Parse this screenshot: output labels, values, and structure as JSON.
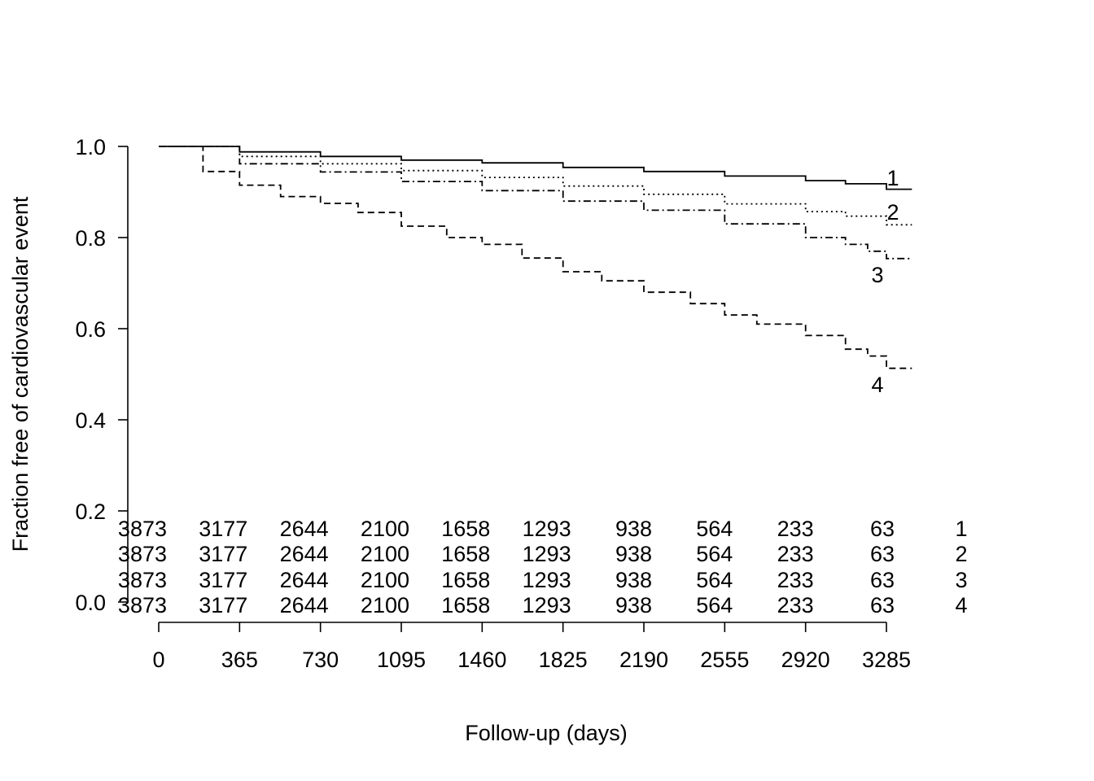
{
  "chart_data": {
    "type": "line",
    "subtype": "kaplan-meier step curves",
    "title": "",
    "xlabel": "Follow-up (days)",
    "ylabel": "Fraction free of cardiovascular event",
    "xlim": [
      0,
      3400
    ],
    "ylim": [
      0.0,
      1.0
    ],
    "x_ticks": [
      0,
      365,
      730,
      1095,
      1460,
      1825,
      2190,
      2555,
      2920,
      3285
    ],
    "y_ticks": [
      "1.0",
      "0.8",
      "0.6",
      "0.4",
      "0.2",
      "0.0"
    ],
    "grid": false,
    "legend": "none; curves labelled directly at right end",
    "series": [
      {
        "name": "1",
        "line_style": "solid",
        "x": [
          0,
          365,
          730,
          1095,
          1460,
          1825,
          2190,
          2555,
          2920,
          3100,
          3285,
          3400
        ],
        "y": [
          1.0,
          0.988,
          0.978,
          0.97,
          0.964,
          0.954,
          0.945,
          0.935,
          0.925,
          0.918,
          0.906,
          0.906
        ]
      },
      {
        "name": "2",
        "line_style": "dotted",
        "x": [
          0,
          365,
          730,
          1095,
          1460,
          1825,
          2190,
          2555,
          2920,
          3100,
          3285,
          3400
        ],
        "y": [
          1.0,
          0.978,
          0.962,
          0.947,
          0.932,
          0.913,
          0.895,
          0.874,
          0.857,
          0.847,
          0.828,
          0.828
        ]
      },
      {
        "name": "3",
        "line_style": "dash-dot",
        "x": [
          0,
          365,
          730,
          1095,
          1460,
          1825,
          2190,
          2555,
          2920,
          3100,
          3200,
          3285,
          3400
        ],
        "y": [
          1.0,
          0.962,
          0.944,
          0.923,
          0.903,
          0.88,
          0.86,
          0.83,
          0.8,
          0.785,
          0.77,
          0.754,
          0.754
        ]
      },
      {
        "name": "4",
        "line_style": "dashed",
        "x": [
          0,
          200,
          365,
          550,
          730,
          900,
          1095,
          1300,
          1460,
          1640,
          1825,
          2000,
          2190,
          2400,
          2555,
          2700,
          2920,
          3100,
          3200,
          3285,
          3400
        ],
        "y": [
          1.0,
          0.945,
          0.915,
          0.89,
          0.875,
          0.855,
          0.825,
          0.8,
          0.785,
          0.755,
          0.725,
          0.705,
          0.68,
          0.655,
          0.63,
          0.61,
          0.585,
          0.555,
          0.54,
          0.513,
          0.513
        ]
      }
    ],
    "curve_labels": [
      "1",
      "2",
      "3",
      "4"
    ],
    "risk_table": {
      "rows": [
        {
          "label": "1",
          "values": [
            "3873",
            "3177",
            "2644",
            "2100",
            "1658",
            "1293",
            "938",
            "564",
            "233",
            "63"
          ]
        },
        {
          "label": "2",
          "values": [
            "3873",
            "3177",
            "2644",
            "2100",
            "1658",
            "1293",
            "938",
            "564",
            "233",
            "63"
          ]
        },
        {
          "label": "3",
          "values": [
            "3873",
            "3177",
            "2644",
            "2100",
            "1658",
            "1293",
            "938",
            "564",
            "233",
            "63"
          ]
        },
        {
          "label": "4",
          "values": [
            "3873",
            "3177",
            "2644",
            "2100",
            "1658",
            "1293",
            "938",
            "564",
            "233",
            "63"
          ]
        }
      ]
    }
  }
}
